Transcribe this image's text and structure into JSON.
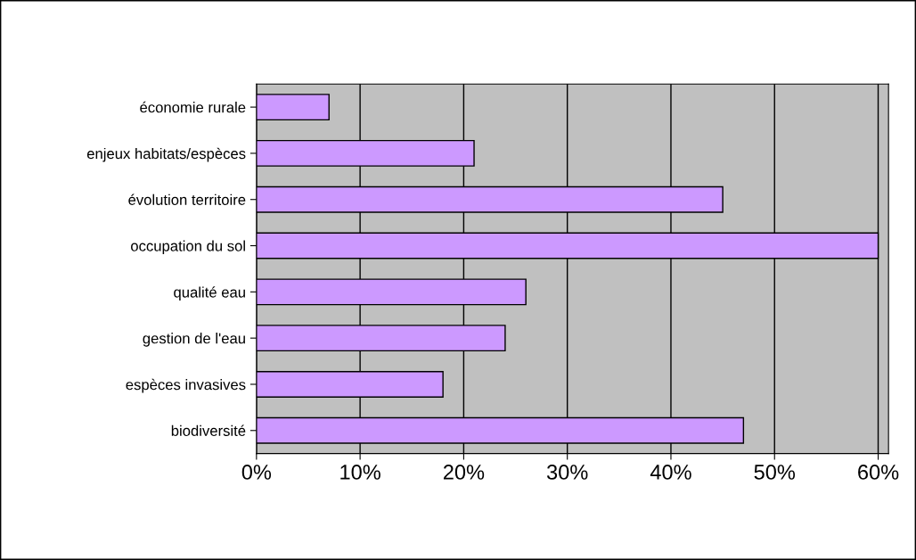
{
  "chart_data": {
    "type": "bar",
    "orientation": "horizontal",
    "categories": [
      "économie rurale",
      "enjeux habitats/espèces",
      "évolution territoire",
      "occupation du sol",
      "qualité eau",
      "gestion de l'eau",
      "espèces invasives",
      "biodiversité"
    ],
    "values": [
      7,
      21,
      45,
      60,
      26,
      24,
      18,
      47
    ],
    "color": "#cc99ff",
    "xlim": [
      0,
      61
    ],
    "xticks": [
      {
        "value": 0,
        "label": "0%"
      },
      {
        "value": 10,
        "label": "10%"
      },
      {
        "value": 20,
        "label": "20%"
      },
      {
        "value": 30,
        "label": "30%"
      },
      {
        "value": 40,
        "label": "40%"
      },
      {
        "value": 50,
        "label": "50%"
      },
      {
        "value": 60,
        "label": "60%"
      }
    ],
    "grid": "x"
  }
}
